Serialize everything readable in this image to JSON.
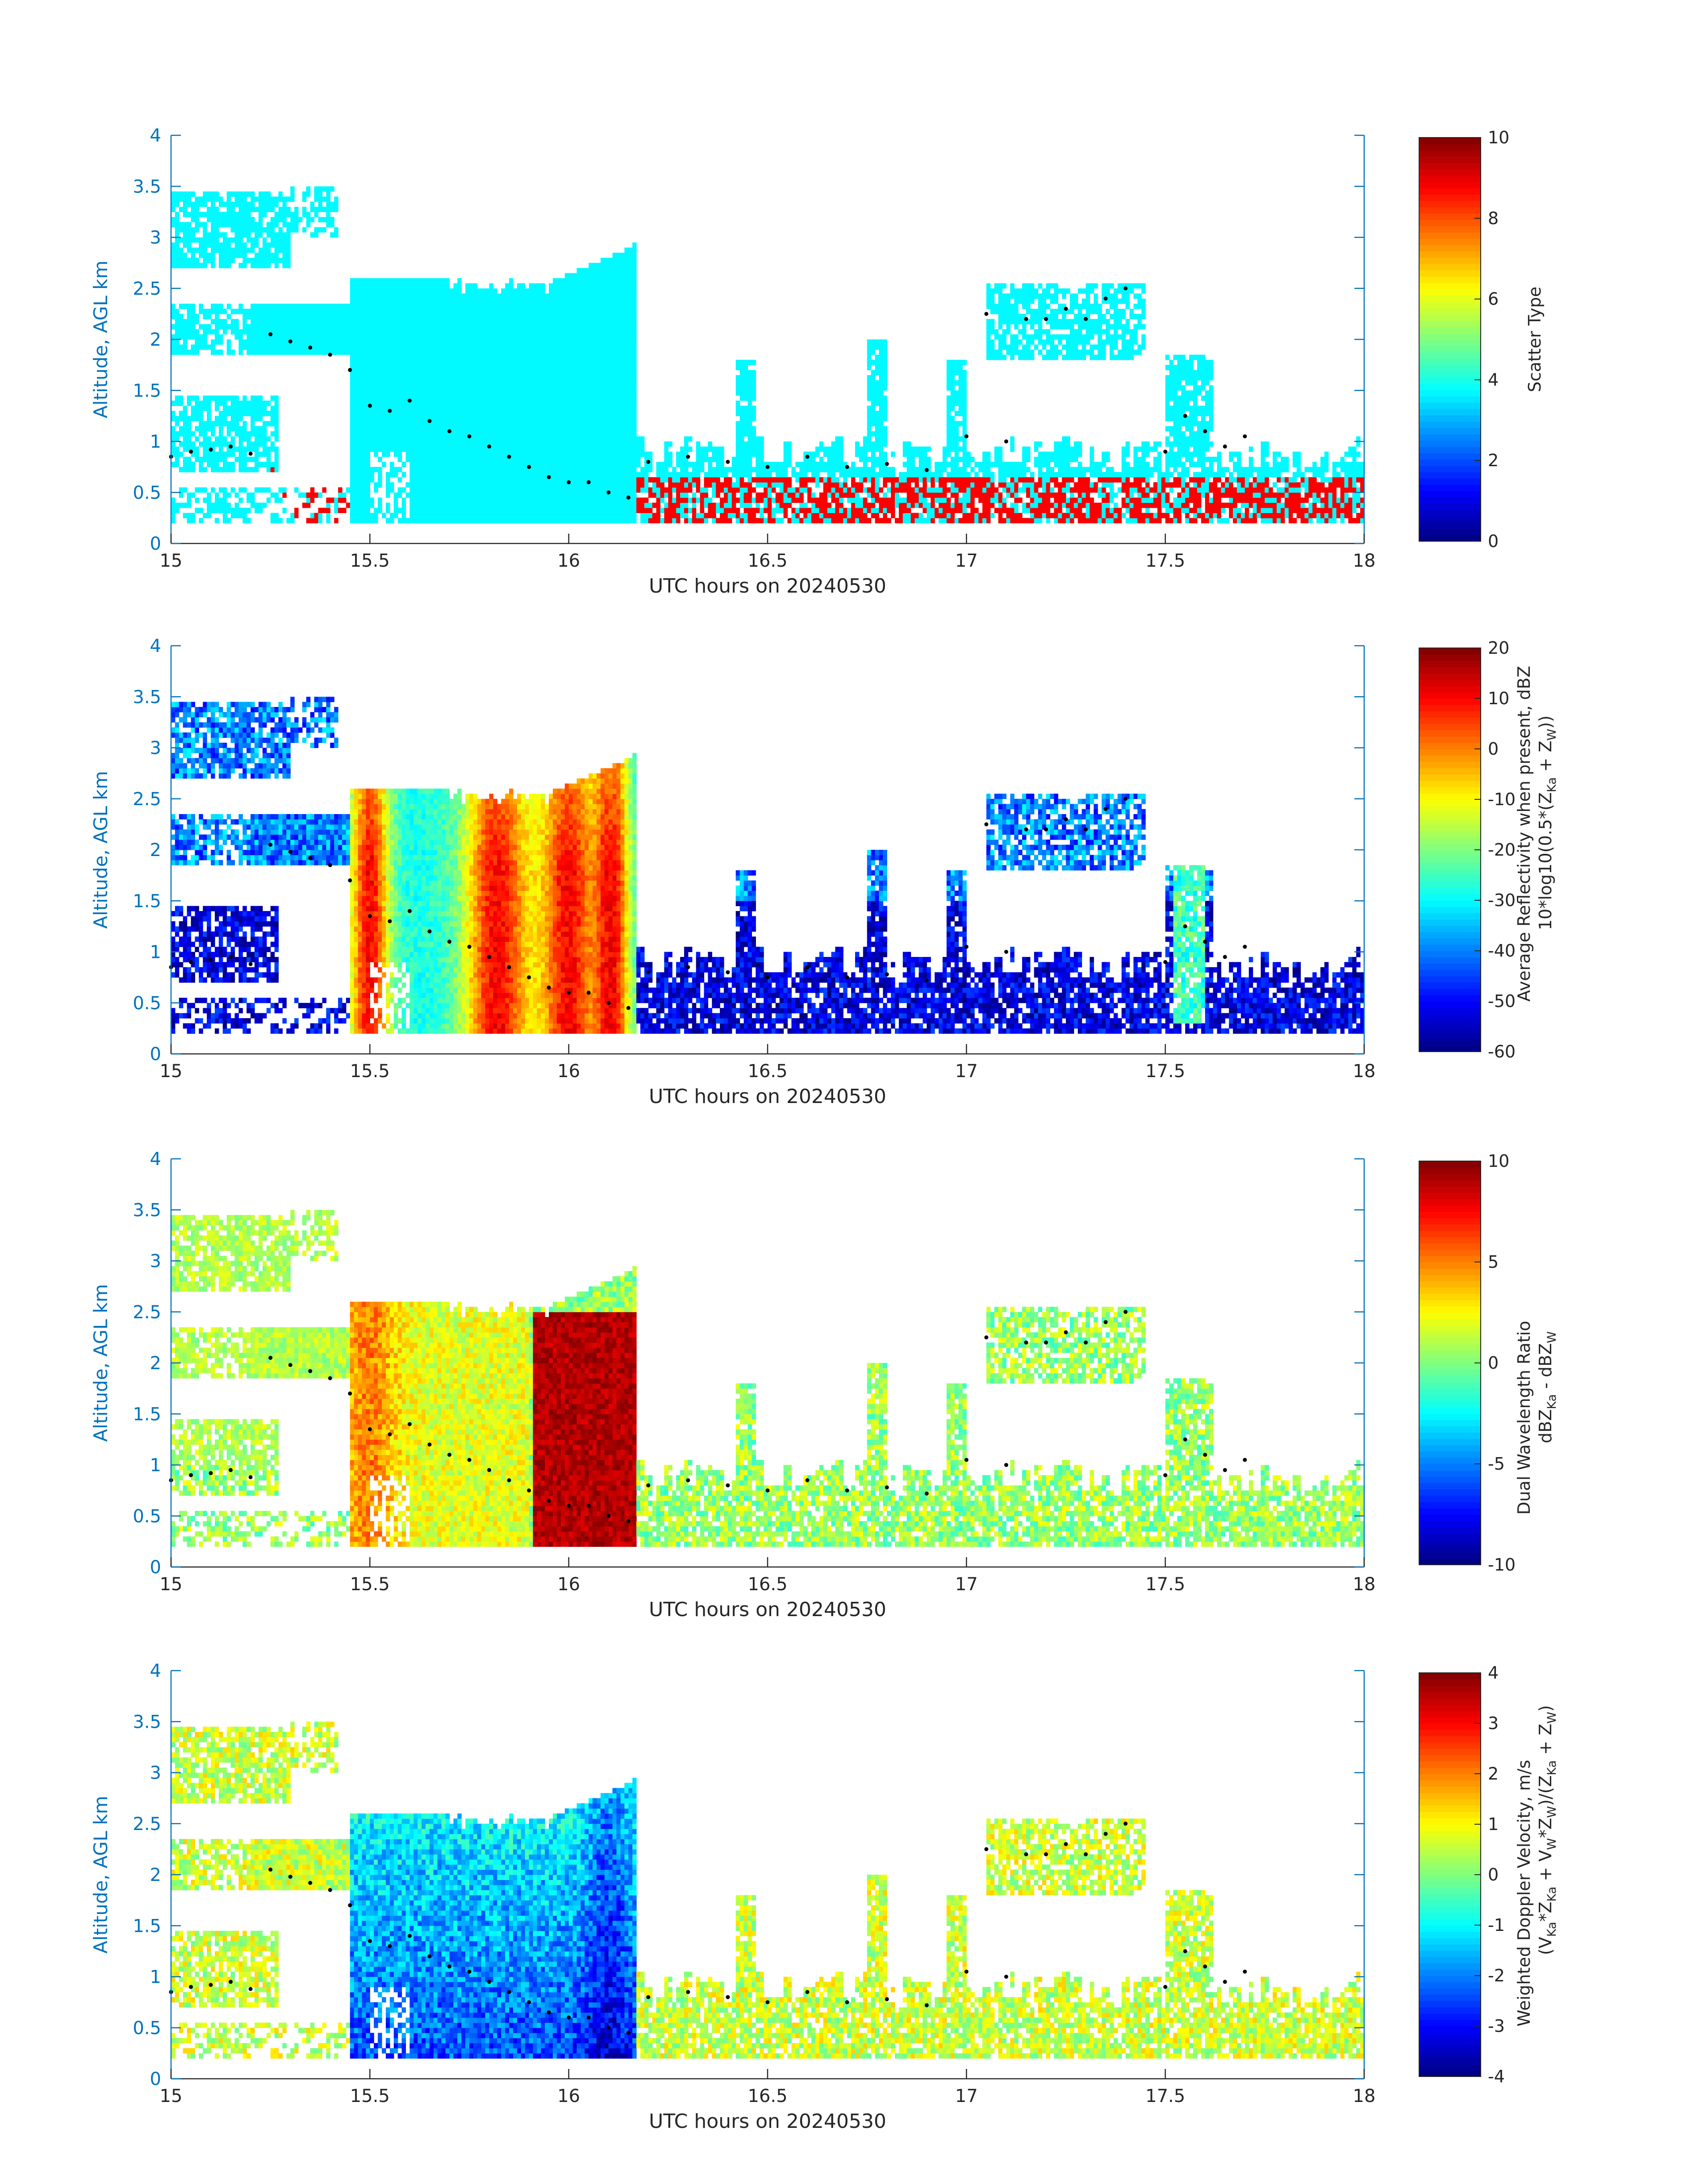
{
  "chart_data": [
    {
      "type": "heatmap",
      "panel": "scatter-type",
      "xlabel": "UTC hours on 20240530",
      "ylabel": "Altitude, AGL km",
      "xlim": [
        15,
        18
      ],
      "ylim": [
        0,
        4
      ],
      "xticks": [
        "15",
        "15.5",
        "16",
        "16.5",
        "17",
        "17.5",
        "18"
      ],
      "yticks": [
        "0",
        "0.5",
        "1",
        "1.5",
        "2",
        "2.5",
        "3",
        "3.5",
        "4"
      ],
      "colorbar": {
        "label_lines": [
          "Scatter Type"
        ],
        "ticks": [
          "0",
          "2",
          "4",
          "6",
          "8",
          "10"
        ],
        "range": [
          0,
          10
        ],
        "colormap": "jet"
      },
      "fields": "discrete: cloud (3.7, cyan) and precipitation (8.8, red-orange)"
    },
    {
      "type": "heatmap",
      "panel": "reflectivity",
      "xlabel": "UTC hours on 20240530",
      "ylabel": "Altitude, AGL km",
      "xlim": [
        15,
        18
      ],
      "ylim": [
        0,
        4
      ],
      "xticks": [
        "15",
        "15.5",
        "16",
        "16.5",
        "17",
        "17.5",
        "18"
      ],
      "yticks": [
        "0",
        "0.5",
        "1",
        "1.5",
        "2",
        "2.5",
        "3",
        "3.5",
        "4"
      ],
      "colorbar": {
        "label_lines": [
          "Average Reflectivity when present, dBZ",
          "10*log10(0.5*(Z",
          "Ka",
          " + Z",
          "W",
          "))"
        ],
        "ticks": [
          "-60",
          "-50",
          "-40",
          "-30",
          "-20",
          "-10",
          "0",
          "10",
          "20"
        ],
        "range": [
          -60,
          20
        ],
        "colormap": "jet"
      }
    },
    {
      "type": "heatmap",
      "panel": "dual-wavelength-ratio",
      "xlabel": "UTC hours on 20240530",
      "ylabel": "Altitude, AGL km",
      "xlim": [
        15,
        18
      ],
      "ylim": [
        0,
        4
      ],
      "xticks": [
        "15",
        "15.5",
        "16",
        "16.5",
        "17",
        "17.5",
        "18"
      ],
      "yticks": [
        "0",
        "0.5",
        "1",
        "1.5",
        "2",
        "2.5",
        "3",
        "3.5",
        "4"
      ],
      "colorbar": {
        "label_lines": [
          "Dual Wavelength Ratio",
          "dBZ",
          "Ka",
          " - dBZ",
          "W"
        ],
        "ticks": [
          "-10",
          "-5",
          "0",
          "5",
          "10"
        ],
        "range": [
          -10,
          10
        ],
        "colormap": "jet"
      }
    },
    {
      "type": "heatmap",
      "panel": "doppler-velocity",
      "xlabel": "UTC hours on 20240530",
      "ylabel": "Altitude, AGL km",
      "xlim": [
        15,
        18
      ],
      "ylim": [
        0,
        4
      ],
      "xticks": [
        "15",
        "15.5",
        "16",
        "16.5",
        "17",
        "17.5",
        "18"
      ],
      "yticks": [
        "0",
        "0.5",
        "1",
        "1.5",
        "2",
        "2.5",
        "3",
        "3.5",
        "4"
      ],
      "colorbar": {
        "label_lines": [
          "Weighted Doppler Velocity, m/s",
          "(V",
          "Ka",
          "*Z",
          "Ka",
          " + V",
          "W",
          "*Z",
          "W",
          ")/(Z",
          "Ka",
          " + Z",
          "W",
          ")"
        ],
        "ticks": [
          "-4",
          "-3",
          "-2",
          "-1",
          "0",
          "1",
          "2",
          "3",
          "4"
        ],
        "range": [
          -4,
          4
        ],
        "colormap": "jet"
      }
    }
  ],
  "cloud_base_dots": {
    "x": [
      15.0,
      15.05,
      15.1,
      15.15,
      15.2,
      15.25,
      15.3,
      15.35,
      15.4,
      15.45,
      15.5,
      15.55,
      15.6,
      15.65,
      15.7,
      15.75,
      15.8,
      15.85,
      15.9,
      15.95,
      16.0,
      16.05,
      16.1,
      16.15,
      16.2,
      16.3,
      16.4,
      16.5,
      16.6,
      16.7,
      16.8,
      16.9,
      17.0,
      17.05,
      17.1,
      17.15,
      17.2,
      17.25,
      17.3,
      17.35,
      17.4,
      17.5,
      17.55,
      17.6,
      17.65,
      17.7
    ],
    "y": [
      0.85,
      0.9,
      0.92,
      0.95,
      0.88,
      2.05,
      1.98,
      1.92,
      1.85,
      1.7,
      1.35,
      1.3,
      1.4,
      1.2,
      1.1,
      1.05,
      0.95,
      0.85,
      0.75,
      0.65,
      0.6,
      0.6,
      0.5,
      0.45,
      0.8,
      0.85,
      0.8,
      0.75,
      0.85,
      0.75,
      0.78,
      0.72,
      1.05,
      2.25,
      1.0,
      2.2,
      2.2,
      2.3,
      2.2,
      2.4,
      2.5,
      0.9,
      1.25,
      1.1,
      0.95,
      1.05
    ]
  }
}
